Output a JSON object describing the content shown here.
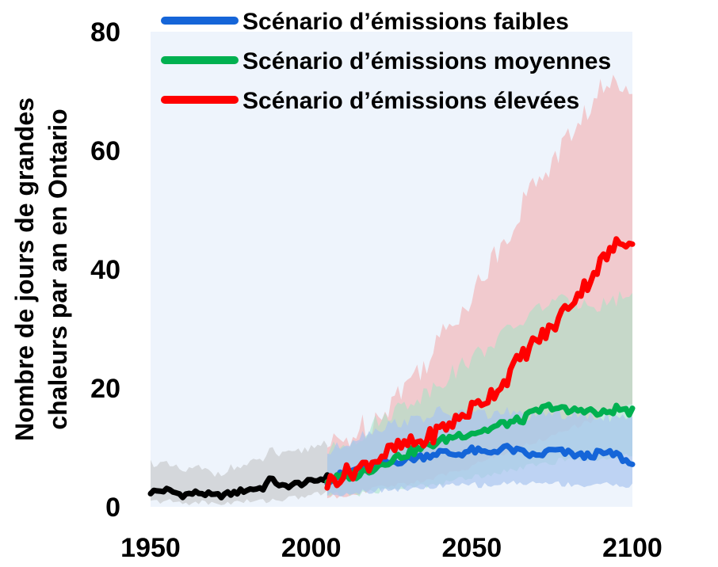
{
  "chart_data": {
    "type": "line",
    "title": "",
    "xlabel": "",
    "ylabel_lines": [
      "Nombre de jours de grandes",
      "chaleurs par an en Ontario"
    ],
    "xlim": [
      1950,
      2100
    ],
    "ylim": [
      0,
      80
    ],
    "xticks": [
      "1950",
      "2000",
      "2050",
      "2100"
    ],
    "yticks": [
      "0",
      "20",
      "40",
      "60",
      "80"
    ],
    "grid": false,
    "legend_position": "top",
    "background_color": "#eef4fc",
    "series": [
      {
        "key": "historical",
        "name": "",
        "color": "#000000",
        "band_color": "#bfbfbf",
        "x": [
          1950,
          1955,
          1960,
          1965,
          1970,
          1975,
          1980,
          1985,
          1988,
          1990,
          1995,
          2000,
          2005
        ],
        "y": [
          2.5,
          2.8,
          2.0,
          2.4,
          1.8,
          2.2,
          2.9,
          3.2,
          5.0,
          3.3,
          3.8,
          4.2,
          5.0
        ],
        "band_lower": [
          0.8,
          1.0,
          0.6,
          0.8,
          0.5,
          0.7,
          0.9,
          1.0,
          1.2,
          1.2,
          1.5,
          2.0,
          2.4
        ],
        "band_upper": [
          7.5,
          7.0,
          6.0,
          6.5,
          5.5,
          6.5,
          7.0,
          8.0,
          10.0,
          8.5,
          9.0,
          10.0,
          11.0
        ]
      },
      {
        "key": "low",
        "name": "Scénario d’émissions faibles",
        "color": "#1565d8",
        "band_color": "#a9c4ef",
        "x": [
          2005,
          2015,
          2025,
          2035,
          2040,
          2045,
          2050,
          2055,
          2060,
          2065,
          2070,
          2075,
          2080,
          2085,
          2090,
          2095,
          2100
        ],
        "y": [
          4.5,
          6.5,
          7.5,
          8.5,
          9.2,
          8.8,
          9.5,
          9.0,
          10.0,
          9.2,
          8.5,
          9.5,
          9.0,
          8.5,
          9.0,
          8.8,
          7.0
        ],
        "band_lower": [
          2.0,
          2.5,
          3.0,
          3.0,
          3.5,
          3.5,
          3.8,
          3.5,
          4.0,
          4.0,
          4.0,
          4.0,
          3.8,
          3.6,
          3.8,
          3.8,
          3.5
        ],
        "band_upper": [
          9.0,
          12.0,
          14.0,
          15.0,
          16.0,
          15.5,
          16.0,
          15.5,
          16.0,
          15.5,
          15.0,
          16.0,
          15.5,
          15.0,
          15.5,
          15.0,
          14.5
        ]
      },
      {
        "key": "medium",
        "name": "Scénario d’émissions moyennes",
        "color": "#00b050",
        "band_color": "#a3e3c4",
        "x": [
          2005,
          2015,
          2025,
          2035,
          2040,
          2045,
          2050,
          2055,
          2060,
          2065,
          2070,
          2075,
          2080,
          2085,
          2090,
          2095,
          2100
        ],
        "y": [
          4.5,
          5.5,
          8.0,
          10.0,
          11.0,
          12.0,
          12.5,
          13.0,
          14.0,
          14.5,
          16.0,
          17.0,
          16.0,
          16.5,
          15.5,
          16.5,
          16.0
        ],
        "band_lower": [
          2.0,
          2.2,
          3.0,
          3.5,
          4.0,
          4.5,
          5.0,
          5.5,
          6.0,
          6.5,
          7.0,
          7.5,
          8.0,
          8.0,
          8.0,
          8.5,
          8.5
        ],
        "band_upper": [
          9.0,
          12.0,
          16.0,
          19.0,
          21.0,
          23.0,
          25.0,
          27.0,
          29.0,
          31.0,
          33.0,
          35.0,
          34.0,
          35.0,
          34.0,
          35.0,
          36.0
        ]
      },
      {
        "key": "high",
        "name": "Scénario d’émissions élevées",
        "color": "#ff0000",
        "band_color": "#f2b8bb",
        "x": [
          2005,
          2010,
          2015,
          2020,
          2025,
          2030,
          2035,
          2040,
          2045,
          2050,
          2055,
          2060,
          2065,
          2070,
          2075,
          2080,
          2085,
          2090,
          2095,
          2100
        ],
        "y": [
          4.0,
          5.5,
          6.5,
          8.0,
          9.5,
          10.5,
          11.0,
          13.0,
          14.5,
          16.5,
          18.5,
          21.0,
          25.0,
          28.0,
          30.0,
          34.0,
          37.0,
          41.0,
          44.0,
          45.5
        ],
        "band_lower": [
          1.5,
          2.0,
          2.5,
          3.0,
          3.5,
          4.0,
          4.5,
          5.0,
          6.0,
          7.0,
          8.0,
          9.0,
          10.0,
          11.0,
          12.0,
          13.0,
          14.0,
          15.0,
          16.0,
          17.0
        ],
        "band_upper": [
          10.0,
          11.0,
          13.0,
          15.0,
          18.0,
          21.0,
          24.0,
          28.0,
          32.0,
          36.0,
          40.0,
          45.0,
          50.0,
          55.0,
          58.0,
          62.0,
          66.0,
          70.0,
          71.0,
          72.0
        ]
      }
    ]
  }
}
